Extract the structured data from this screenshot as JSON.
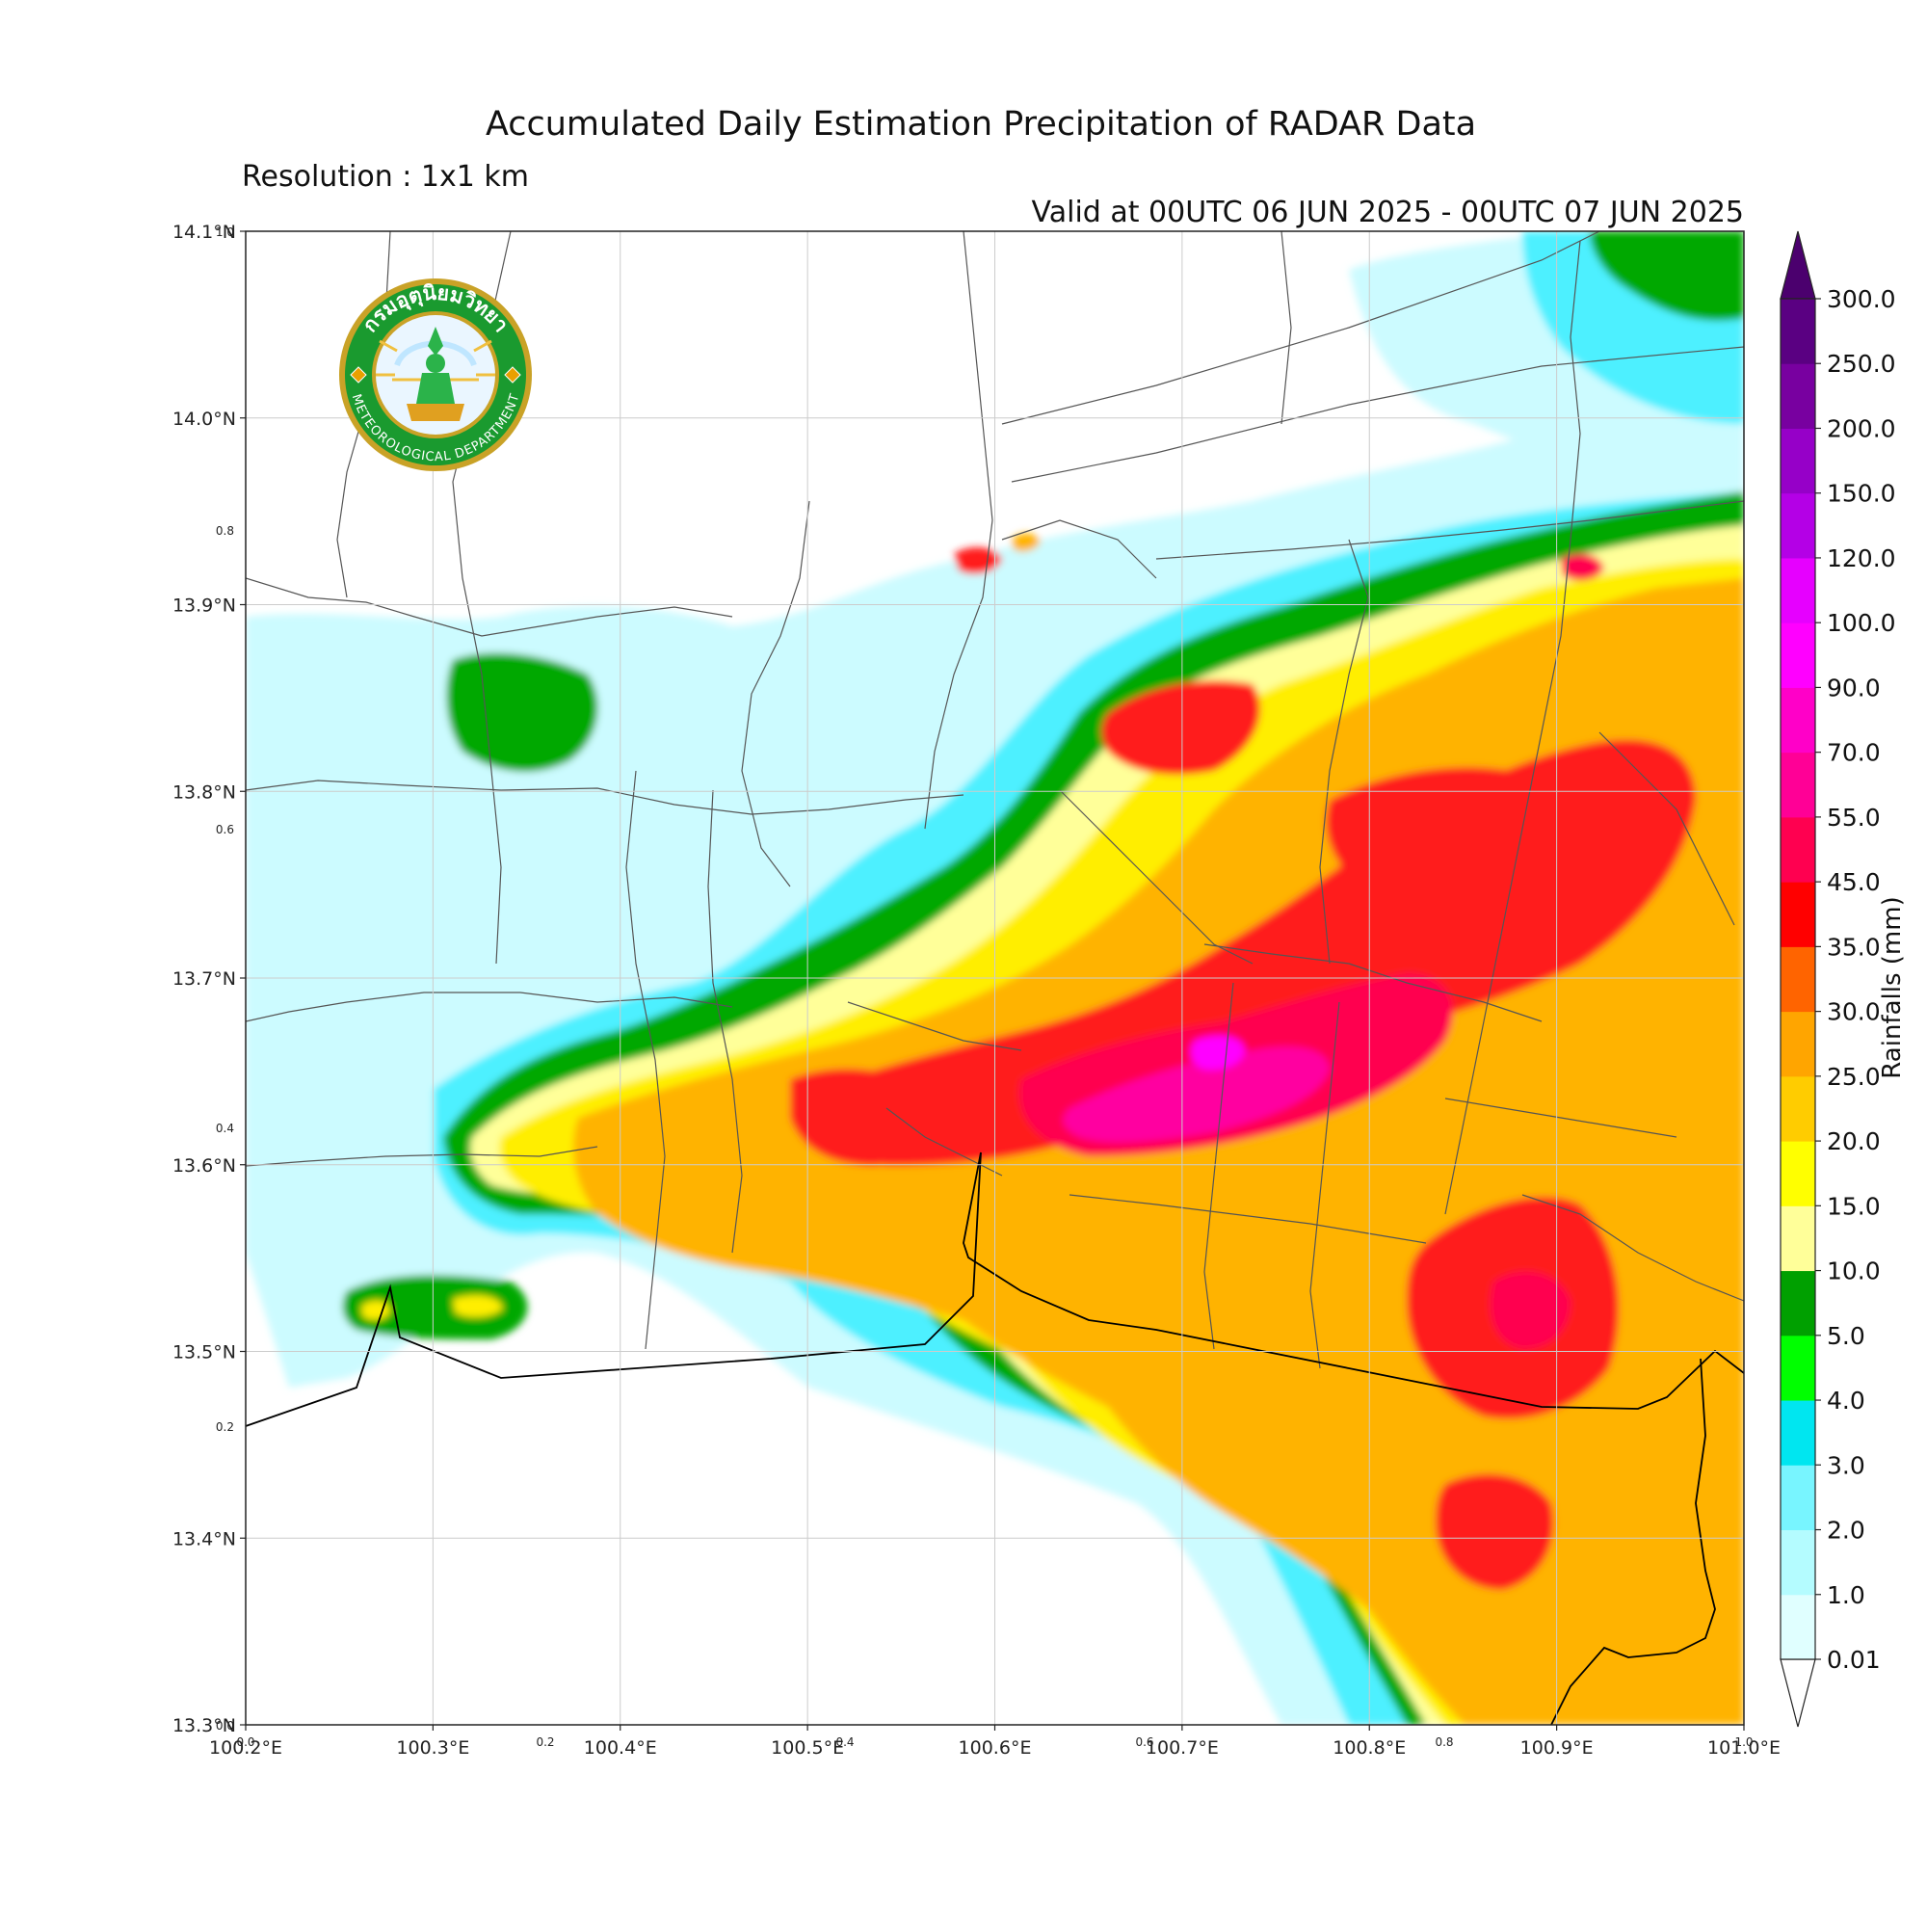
{
  "title": "Accumulated Daily Estimation Precipitation of RADAR Data",
  "resolution": "Resolution : 1x1 km",
  "valid_time": "Valid at 00UTC 06 JUN 2025 - 00UTC 07 JUN 2025",
  "logo": {
    "thai_text": "กรมอุตุนิยมวิทยา",
    "english_text": "METEOROLOGICAL DEPARTMENT"
  },
  "map": {
    "lon_range": [
      100.2,
      101.0
    ],
    "lat_range": [
      13.3,
      14.1
    ],
    "lon_ticks": [
      {
        "value": 100.2,
        "label": "100.2°E"
      },
      {
        "value": 100.3,
        "label": "100.3°E"
      },
      {
        "value": 100.4,
        "label": "100.4°E"
      },
      {
        "value": 100.5,
        "label": "100.5°E"
      },
      {
        "value": 100.6,
        "label": "100.6°E"
      },
      {
        "value": 100.7,
        "label": "100.7°E"
      },
      {
        "value": 100.8,
        "label": "100.8°E"
      },
      {
        "value": 100.9,
        "label": "100.9°E"
      },
      {
        "value": 101.0,
        "label": "101.0°E"
      }
    ],
    "lat_ticks": [
      {
        "value": 14.1,
        "label": "14.1°N"
      },
      {
        "value": 14.0,
        "label": "14.0°N"
      },
      {
        "value": 13.9,
        "label": "13.9°N"
      },
      {
        "value": 13.8,
        "label": "13.8°N"
      },
      {
        "value": 13.7,
        "label": "13.7°N"
      },
      {
        "value": 13.6,
        "label": "13.6°N"
      },
      {
        "value": 13.5,
        "label": "13.5°N"
      },
      {
        "value": 13.4,
        "label": "13.4°N"
      },
      {
        "value": 13.3,
        "label": "13.3°N"
      }
    ],
    "frac_ticks_x": [
      "0.0",
      "0.2",
      "0.4",
      "0.6",
      "0.8",
      "1.0"
    ],
    "frac_ticks_y": [
      "1.0",
      "0.8",
      "0.6",
      "0.4",
      "0.2",
      "0.0"
    ],
    "grid": true
  },
  "colorbar": {
    "label": "Rainfalls (mm)",
    "levels": [
      "0.01",
      "1.0",
      "2.0",
      "3.0",
      "4.0",
      "5.0",
      "10.0",
      "15.0",
      "20.0",
      "25.0",
      "30.0",
      "35.0",
      "45.0",
      "55.0",
      "70.0",
      "90.0",
      "100.0",
      "120.0",
      "150.0",
      "200.0",
      "250.0",
      "300.0"
    ],
    "colors": [
      "#e0ffff",
      "#b4fcff",
      "#78f5ff",
      "#00e6f0",
      "#00ff00",
      "#00a000",
      "#ffff99",
      "#ffff00",
      "#ffcc00",
      "#ffa500",
      "#ff6400",
      "#ff0000",
      "#ff0050",
      "#ff0096",
      "#ff00c8",
      "#ff00ff",
      "#e600ff",
      "#b400e6",
      "#9600c8",
      "#7800a0",
      "#5a0082"
    ],
    "extend_min_color": "#ffffff",
    "extend_max_color": "#4b006e"
  },
  "rain_field_colors": {
    "light": "#ccfbff",
    "cyan": "#4ef0ff",
    "green": "#00a800",
    "lightyellow": "#ffff99",
    "yellow": "#ffee00",
    "orange": "#ffb300",
    "red": "#ff1a1a",
    "crimson": "#ff0050",
    "pink": "#ff00a0",
    "magenta": "#ff00ff"
  }
}
